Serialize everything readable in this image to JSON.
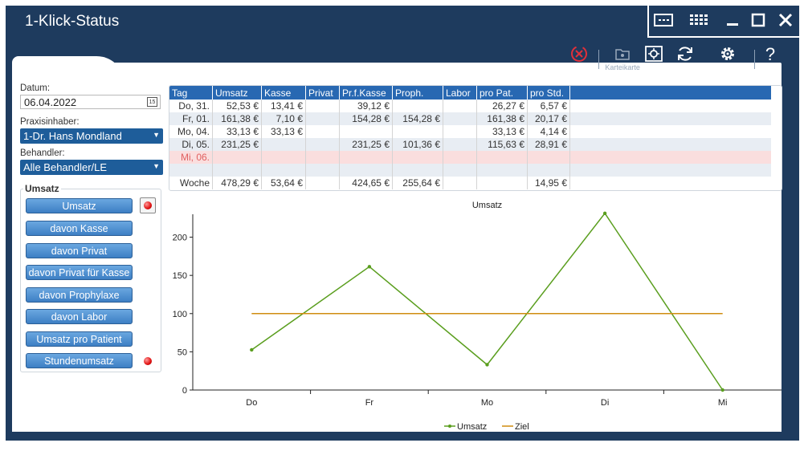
{
  "window": {
    "title": "1-Klick-Status"
  },
  "toolbar": {
    "beenden": "Beenden",
    "karteikarte": "Karteikarte",
    "zoom": "Zoom",
    "neuaufbau": "Neuaufbau",
    "konfiguration": "Konfiguration",
    "hilfe": "Hilfe"
  },
  "filters": {
    "datum_label": "Datum:",
    "datum_value": "06.04.2022",
    "calendar_day": "15",
    "praxis_label": "Praxisinhaber:",
    "praxis_value": "1-Dr. Hans Mondland",
    "behandler_label": "Behandler:",
    "behandler_value": "Alle Behandler/LE"
  },
  "umsatz_group": {
    "title": "Umsatz",
    "buttons": [
      "Umsatz",
      "davon Kasse",
      "davon Privat",
      "davon Privat für Kasse",
      "davon Prophylaxe",
      "davon Labor",
      "Umsatz pro Patient",
      "Stundenumsatz"
    ]
  },
  "table": {
    "headers": [
      "Tag",
      "Umsatz",
      "Kasse",
      "Privat",
      "Pr.f.Kasse",
      "Proph.",
      "Labor",
      "pro Pat.",
      "pro Std."
    ],
    "rows": [
      [
        "Do, 31.",
        "52,53 €",
        "13,41 €",
        "",
        "39,12 €",
        "",
        "",
        "26,27 €",
        "6,57 €"
      ],
      [
        "Fr, 01.",
        "161,38 €",
        "7,10 €",
        "",
        "154,28 €",
        "154,28 €",
        "",
        "161,38 €",
        "20,17 €"
      ],
      [
        "Mo, 04.",
        "33,13 €",
        "33,13 €",
        "",
        "",
        "",
        "",
        "33,13 €",
        "4,14 €"
      ],
      [
        "Di, 05.",
        "231,25 €",
        "",
        "",
        "231,25 €",
        "101,36 €",
        "",
        "115,63 €",
        "28,91 €"
      ],
      [
        "Mi, 06.",
        "",
        "",
        "",
        "",
        "",
        "",
        "",
        ""
      ]
    ],
    "woche": [
      "Woche",
      "478,29 €",
      "53,64 €",
      "",
      "424,65 €",
      "255,64 €",
      "",
      "",
      "14,95 €"
    ]
  },
  "chart_data": {
    "type": "line",
    "title": "Umsatz",
    "categories": [
      "Do",
      "Fr",
      "Mo",
      "Di",
      "Mi"
    ],
    "series": [
      {
        "name": "Umsatz",
        "values": [
          52.53,
          161.38,
          33.13,
          231.25,
          0
        ],
        "color": "#5a9e1e"
      },
      {
        "name": "Ziel",
        "values": [
          100,
          100,
          100,
          100,
          100
        ],
        "color": "#d08c10"
      }
    ],
    "yticks": [
      0,
      50,
      100,
      150,
      200
    ],
    "ylim": [
      0,
      230
    ],
    "legend": "bottom"
  },
  "colors": {
    "window": "#1e3b5e",
    "header": "#2868b2",
    "button": "#4b8fd0",
    "highlight_row": "#fadede"
  }
}
